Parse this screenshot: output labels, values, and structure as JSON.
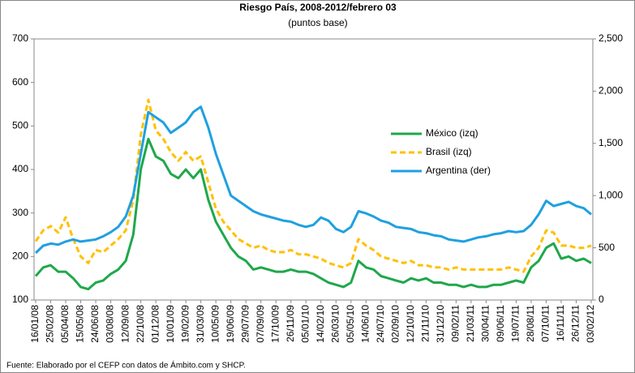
{
  "chart_data": {
    "type": "line",
    "title": "Riesgo País, 2008-2012/febrero 03",
    "subtitle": "(puntos base)",
    "source": "Fuente: Elaborado por el CEFP con datos de Ámbito.com y SHCP.",
    "categories": [
      "16/01/08",
      null,
      "25/02/08",
      null,
      "05/04/08",
      null,
      "15/05/08",
      null,
      "24/06/08",
      null,
      "03/08/08",
      null,
      "12/09/08",
      null,
      "22/10/08",
      null,
      "01/12/08",
      null,
      "10/01/09",
      null,
      "19/02/09",
      null,
      "31/03/09",
      null,
      "10/05/09",
      null,
      "19/06/09",
      null,
      "29/07/09",
      null,
      "07/09/09",
      null,
      "17/10/09",
      null,
      "26/11/09",
      null,
      "05/01/10",
      null,
      "14/02/10",
      null,
      "26/03/10",
      null,
      "05/05/10",
      null,
      "14/06/10",
      null,
      "24/07/10",
      null,
      "02/09/10",
      null,
      "12/10/10",
      null,
      "21/11/10",
      null,
      "31/12/10",
      null,
      "09/02/11",
      null,
      "21/03/11",
      null,
      "30/04/11",
      null,
      "09/06/11",
      null,
      "19/07/11",
      null,
      "28/08/11",
      null,
      "07/10/11",
      null,
      "16/11/11",
      null,
      "26/12/11",
      null,
      "03/02/12"
    ],
    "series": [
      {
        "name": "México (izq)",
        "color": "#1fa84a",
        "dashed": false,
        "axis": "y",
        "values": [
          155,
          175,
          180,
          165,
          165,
          150,
          130,
          125,
          140,
          145,
          160,
          170,
          190,
          250,
          400,
          470,
          430,
          420,
          390,
          380,
          400,
          380,
          400,
          330,
          280,
          250,
          220,
          200,
          190,
          170,
          175,
          170,
          165,
          165,
          170,
          165,
          165,
          160,
          150,
          140,
          135,
          130,
          140,
          190,
          175,
          170,
          155,
          150,
          145,
          140,
          150,
          145,
          150,
          140,
          140,
          135,
          135,
          130,
          135,
          130,
          130,
          135,
          135,
          140,
          145,
          140,
          175,
          190,
          220,
          230,
          195,
          200,
          190,
          195,
          185
        ]
      },
      {
        "name": "Brasil (izq)",
        "color": "#ffc000",
        "dashed": true,
        "axis": "y",
        "values": [
          235,
          260,
          270,
          255,
          290,
          240,
          200,
          185,
          215,
          210,
          225,
          240,
          260,
          330,
          480,
          560,
          490,
          470,
          440,
          420,
          440,
          420,
          430,
          370,
          310,
          280,
          260,
          240,
          230,
          220,
          225,
          215,
          210,
          210,
          215,
          205,
          205,
          200,
          195,
          185,
          180,
          175,
          185,
          240,
          225,
          215,
          200,
          195,
          190,
          185,
          190,
          180,
          180,
          175,
          175,
          170,
          175,
          170,
          170,
          170,
          170,
          170,
          170,
          175,
          170,
          165,
          200,
          220,
          260,
          255,
          225,
          225,
          220,
          220,
          225
        ]
      },
      {
        "name": "Argentina (der)",
        "color": "#1fa0e0",
        "dashed": false,
        "axis": "y2",
        "values": [
          450,
          520,
          540,
          530,
          560,
          580,
          560,
          570,
          580,
          610,
          650,
          700,
          800,
          1000,
          1400,
          1800,
          1750,
          1700,
          1600,
          1650,
          1700,
          1800,
          1850,
          1650,
          1400,
          1200,
          1000,
          950,
          900,
          850,
          820,
          800,
          780,
          760,
          750,
          720,
          700,
          720,
          790,
          760,
          680,
          650,
          700,
          850,
          830,
          800,
          760,
          740,
          700,
          690,
          680,
          650,
          640,
          620,
          610,
          580,
          570,
          560,
          580,
          600,
          610,
          630,
          640,
          660,
          650,
          660,
          720,
          820,
          950,
          900,
          920,
          940,
          900,
          880,
          820
        ]
      }
    ],
    "ylim": [
      100,
      700
    ],
    "yticks": [
      100,
      200,
      300,
      400,
      500,
      600,
      700
    ],
    "y2lim": [
      0,
      2500
    ],
    "y2ticks": [
      0,
      500,
      {
        "value": 1000,
        "label": "1,000"
      },
      {
        "value": 1500,
        "label": "1,500"
      },
      {
        "value": 2000,
        "label": "2,000"
      },
      {
        "value": 2500,
        "label": "2,500"
      }
    ],
    "legend": "right"
  }
}
